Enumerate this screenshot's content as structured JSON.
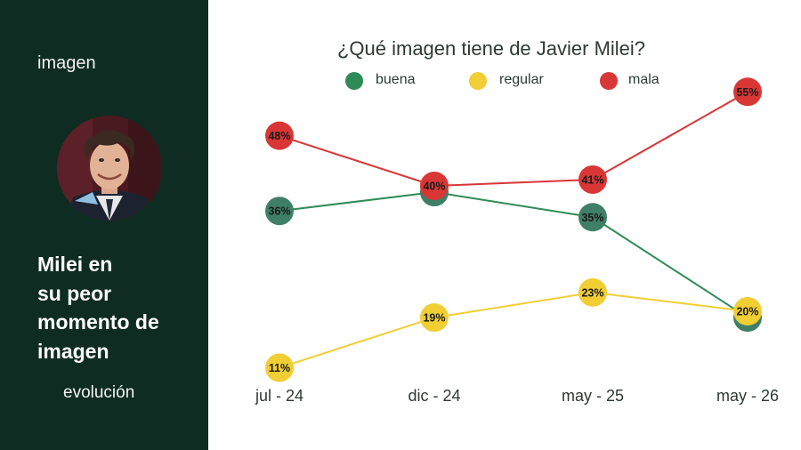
{
  "sidebar": {
    "top_label": "imagen",
    "headline": [
      "Milei en",
      "su peor",
      "momento de",
      "imagen"
    ],
    "bottom_label": "evolución",
    "background": "#0f2c22"
  },
  "chart_data": {
    "type": "line",
    "title": "¿Qué imagen tiene de Javier Milei?",
    "categories": [
      "jul - 24",
      "dic - 24",
      "may - 25",
      "may - 26"
    ],
    "ylim": [
      0,
      60
    ],
    "grid": false,
    "legend_placement": "top",
    "series": [
      {
        "name": "buena",
        "color": "#2e8b57",
        "marker_color": "#3f7e67",
        "values": [
          36,
          39,
          35,
          19
        ],
        "labels": [
          "36%",
          "39%",
          "35%",
          "19%"
        ]
      },
      {
        "name": "regular",
        "color": "#f0ce34",
        "marker_color": "#f0ce34",
        "values": [
          11,
          19,
          23,
          20
        ],
        "labels": [
          "11%",
          "19%",
          "23%",
          "20%"
        ]
      },
      {
        "name": "mala",
        "color": "#d93636",
        "marker_color": "#d93636",
        "values": [
          48,
          40,
          41,
          55
        ],
        "labels": [
          "48%",
          "40%",
          "41%",
          "55%"
        ]
      }
    ]
  }
}
